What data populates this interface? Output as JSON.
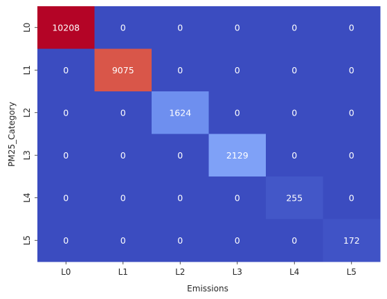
{
  "chart_data": {
    "type": "heatmap",
    "title": "",
    "xlabel": "Emissions",
    "ylabel": "PM25_Category",
    "x_categories": [
      "L0",
      "L1",
      "L2",
      "L3",
      "L4",
      "L5"
    ],
    "y_categories": [
      "L0",
      "L1",
      "L2",
      "L3",
      "L4",
      "L5"
    ],
    "values": [
      [
        10208,
        0,
        0,
        0,
        0,
        0
      ],
      [
        0,
        9075,
        0,
        0,
        0,
        0
      ],
      [
        0,
        0,
        1624,
        0,
        0,
        0
      ],
      [
        0,
        0,
        0,
        2129,
        0,
        0
      ],
      [
        0,
        0,
        0,
        0,
        255,
        0
      ],
      [
        0,
        0,
        0,
        0,
        0,
        172
      ]
    ],
    "colormap": "coolwarm",
    "value_range": [
      0,
      10208
    ],
    "annotations": true,
    "colorbar": false,
    "grid": false
  }
}
